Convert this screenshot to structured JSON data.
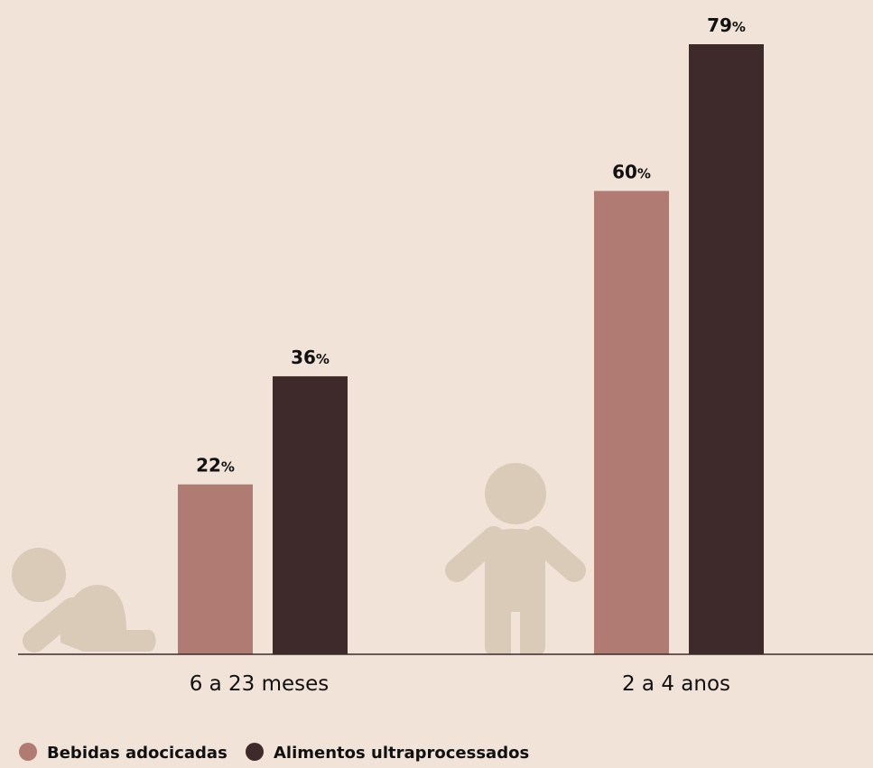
{
  "colors": {
    "background": "#f1e3d8",
    "icon": "#d9cbb8",
    "axis": "#3c2a2a",
    "text": "#111111"
  },
  "chart_data": {
    "type": "bar",
    "categories": [
      "6 a 23 meses",
      "2 a 4 anos"
    ],
    "category_icons": [
      "crawling-baby-icon",
      "toddler-icon"
    ],
    "series": [
      {
        "name": "Bebidas adocicadas",
        "color": "#b07b73",
        "values": [
          22,
          60
        ]
      },
      {
        "name": "Alimentos ultraprocessados",
        "color": "#3e2a2a",
        "values": [
          36,
          79
        ]
      }
    ],
    "value_suffix": "%",
    "ylim": [
      0,
      79
    ],
    "grid": false,
    "legend_position": "bottom-left"
  }
}
